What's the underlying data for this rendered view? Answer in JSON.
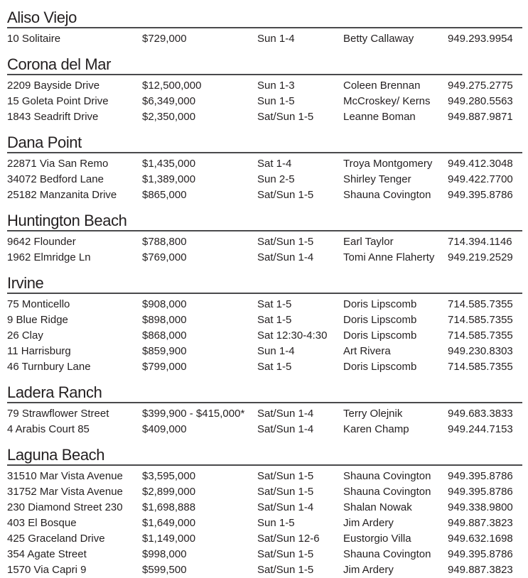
{
  "document": {
    "sections": [
      {
        "city": "Aliso Viejo",
        "listings": [
          {
            "address": "10 Solitaire",
            "price": "$729,000",
            "time": "Sun 1-4",
            "agent": "Betty Callaway",
            "phone": "949.293.9954"
          }
        ]
      },
      {
        "city": "Corona del Mar",
        "listings": [
          {
            "address": "2209 Bayside Drive",
            "price": "$12,500,000",
            "time": "Sun 1-3",
            "agent": "Coleen Brennan",
            "phone": "949.275.2775"
          },
          {
            "address": "15 Goleta Point Drive",
            "price": "$6,349,000",
            "time": "Sun 1-5",
            "agent": "McCroskey/ Kerns",
            "phone": "949.280.5563"
          },
          {
            "address": "1843 Seadrift Drive",
            "price": "$2,350,000",
            "time": "Sat/Sun 1-5",
            "agent": "Leanne Boman",
            "phone": "949.887.9871"
          }
        ]
      },
      {
        "city": "Dana Point",
        "listings": [
          {
            "address": "22871 Via San Remo",
            "price": "$1,435,000",
            "time": "Sat 1-4",
            "agent": "Troya Montgomery",
            "phone": "949.412.3048"
          },
          {
            "address": "34072 Bedford Lane",
            "price": "$1,389,000",
            "time": "Sun 2-5",
            "agent": "Shirley Tenger",
            "phone": "949.422.7700"
          },
          {
            "address": "25182 Manzanita Drive",
            "price": "$865,000",
            "time": "Sat/Sun 1-5",
            "agent": "Shauna Covington",
            "phone": "949.395.8786"
          }
        ]
      },
      {
        "city": "Huntington Beach",
        "listings": [
          {
            "address": "9642 Flounder",
            "price": "$788,800",
            "time": "Sat/Sun 1-5",
            "agent": "Earl Taylor",
            "phone": "714.394.1146"
          },
          {
            "address": "1962 Elmridge Ln",
            "price": "$769,000",
            "time": "Sat/Sun 1-4",
            "agent": "Tomi Anne Flaherty",
            "phone": "949.219.2529"
          }
        ]
      },
      {
        "city": "Irvine",
        "listings": [
          {
            "address": "75 Monticello",
            "price": "$908,000",
            "time": "Sat 1-5",
            "agent": "Doris Lipscomb",
            "phone": "714.585.7355"
          },
          {
            "address": "9 Blue Ridge",
            "price": "$898,000",
            "time": "Sat 1-5",
            "agent": "Doris Lipscomb",
            "phone": "714.585.7355"
          },
          {
            "address": "26 Clay",
            "price": "$868,000",
            "time": "Sat 12:30-4:30",
            "agent": "Doris Lipscomb",
            "phone": "714.585.7355"
          },
          {
            "address": "11 Harrisburg",
            "price": "$859,900",
            "time": "Sun 1-4",
            "agent": "Art Rivera",
            "phone": "949.230.8303"
          },
          {
            "address": "46 Turnbury Lane",
            "price": "$799,000",
            "time": "Sat 1-5",
            "agent": "Doris Lipscomb",
            "phone": "714.585.7355"
          }
        ]
      },
      {
        "city": "Ladera Ranch",
        "listings": [
          {
            "address": "79 Strawflower Street",
            "price": "$399,900 - $415,000*",
            "time": "Sat/Sun 1-4",
            "agent": "Terry Olejnik",
            "phone": "949.683.3833"
          },
          {
            "address": "4 Arabis Court 85",
            "price": "$409,000",
            "time": "Sat/Sun 1-4",
            "agent": "Karen Champ",
            "phone": "949.244.7153"
          }
        ]
      },
      {
        "city": "Laguna Beach",
        "listings": [
          {
            "address": "31510 Mar Vista Avenue",
            "price": "$3,595,000",
            "time": "Sat/Sun 1-5",
            "agent": "Shauna Covington",
            "phone": "949.395.8786"
          },
          {
            "address": "31752 Mar Vista Avenue",
            "price": "$2,899,000",
            "time": "Sat/Sun 1-5",
            "agent": "Shauna Covington",
            "phone": "949.395.8786"
          },
          {
            "address": "230 Diamond Street 230",
            "price": "$1,698,888",
            "time": "Sat/Sun 1-4",
            "agent": "Shalan Nowak",
            "phone": "949.338.9800"
          },
          {
            "address": "403 El Bosque",
            "price": "$1,649,000",
            "time": "Sun 1-5",
            "agent": "Jim Ardery",
            "phone": "949.887.3823"
          },
          {
            "address": "425 Graceland Drive",
            "price": "$1,149,000",
            "time": "Sat/Sun 12-6",
            "agent": "Eustorgio Villa",
            "phone": "949.632.1698"
          },
          {
            "address": "354 Agate Street",
            "price": "$998,000",
            "time": "Sat/Sun 1-5",
            "agent": "Shauna Covington",
            "phone": "949.395.8786"
          },
          {
            "address": "1570 Via Capri 9",
            "price": "$599,500",
            "time": "Sat/Sun 1-5",
            "agent": "Jim Ardery",
            "phone": "949.887.3823"
          }
        ]
      }
    ]
  },
  "colors": {
    "text": "#231f20",
    "rule": "#4a4a4c",
    "background": "#ffffff"
  }
}
